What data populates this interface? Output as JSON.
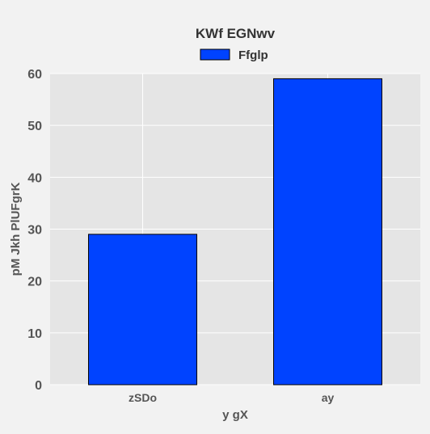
{
  "chart_data": {
    "type": "bar",
    "title": "KWf  EGNwv",
    "xlabel": "y  gX",
    "ylabel": "pM Jkh PlUFgrK",
    "categories": [
      "zSDo",
      "ay"
    ],
    "series": [
      {
        "name": "Ffglp",
        "values": [
          29,
          59
        ],
        "color": "#0043ff"
      }
    ],
    "ylim": [
      0,
      60
    ],
    "yticks": [
      0,
      10,
      20,
      30,
      40,
      50,
      60
    ],
    "grid": true,
    "legend": "top-center"
  },
  "colors": {
    "page_background": "#f2f2f2",
    "plot_background": "#e5e5e5",
    "grid": "#ffffff",
    "text": "#555555",
    "bar_edge": "#000000"
  }
}
